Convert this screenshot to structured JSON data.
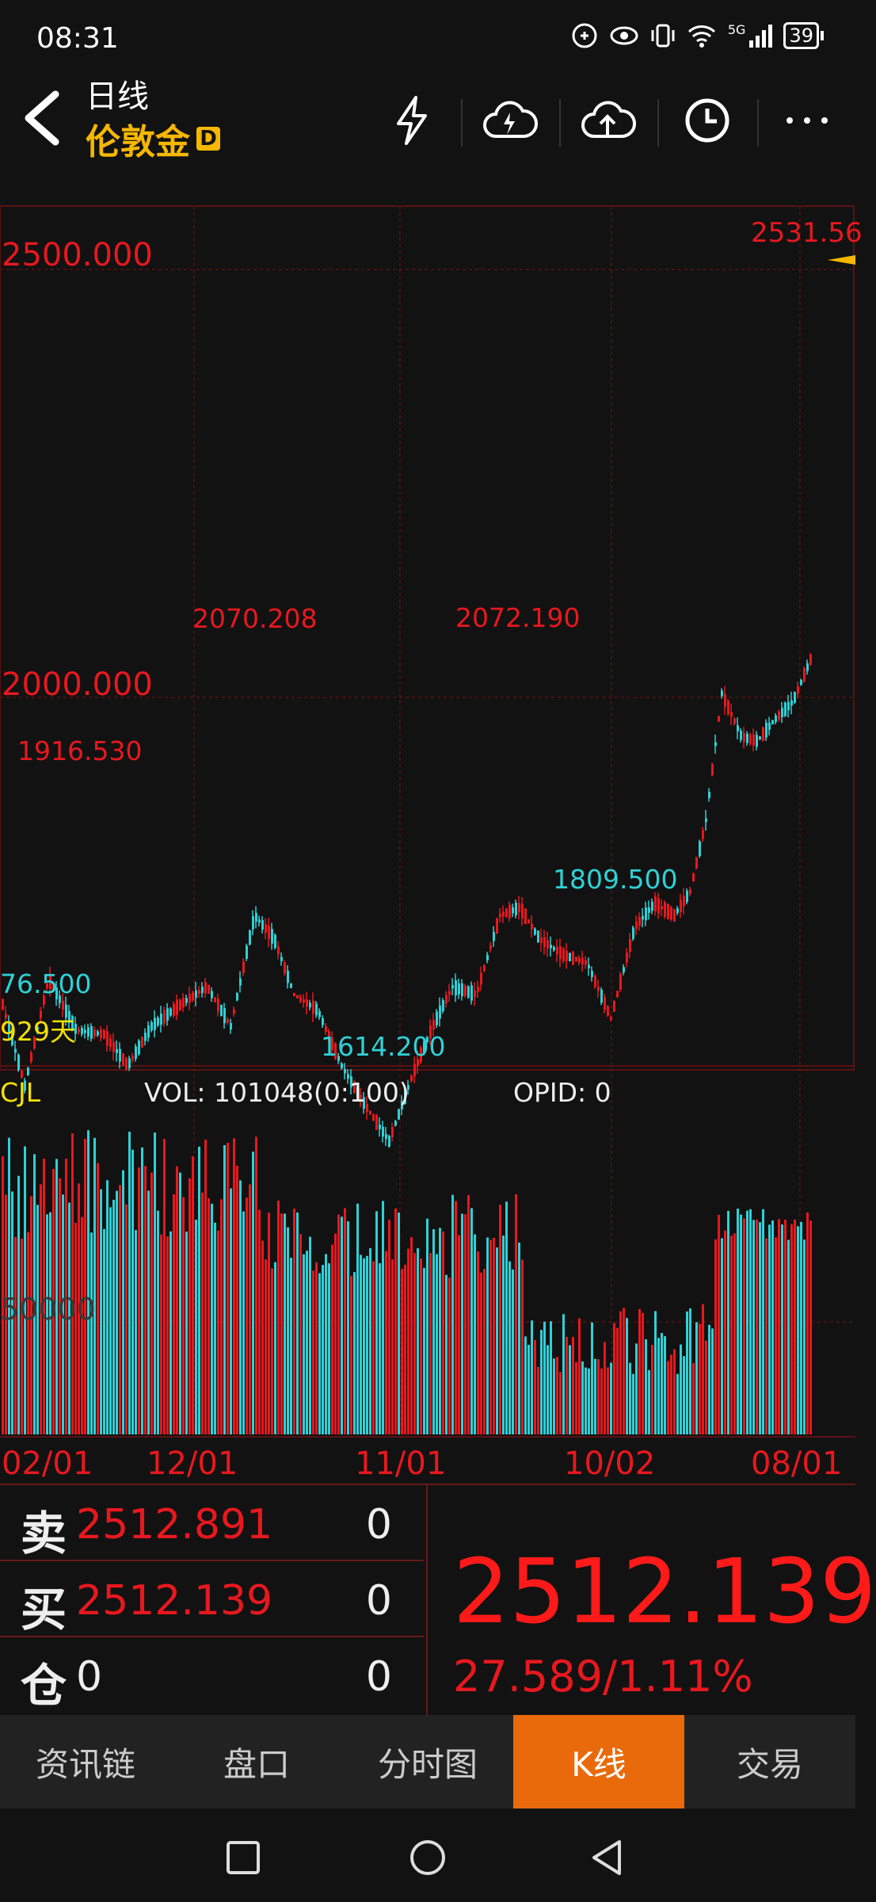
{
  "status_bar": {
    "time": "08:31",
    "battery": "39",
    "network": "5G"
  },
  "header": {
    "title": "日线",
    "instrument": "伦敦金",
    "badge": "D",
    "icons": [
      "flash-icon",
      "cloud-flash-icon",
      "cloud-upload-icon",
      "clock-icon",
      "more-icon"
    ]
  },
  "chart": {
    "price_labels": {
      "top": "2500.000",
      "mid": "2000.000"
    },
    "annotations": {
      "high": "2531.56",
      "h1": "2070.208",
      "h2": "2072.190",
      "h3": "1916.530",
      "l1": "1614.200",
      "l2": "1809.500",
      "l3": "76.500",
      "days": "929天"
    },
    "volume_header": {
      "name": "CJL",
      "vol": "VOL: 101048(0:100)",
      "opid": "OPID: 0"
    },
    "volume_axis": "50000",
    "date_labels": [
      "02/01",
      "12/01",
      "11/01",
      "10/02",
      "08/01"
    ]
  },
  "quote": {
    "sell_label": "卖",
    "sell_price": "2512.891",
    "sell_qty": "0",
    "buy_label": "买",
    "buy_price": "2512.139",
    "buy_qty": "0",
    "pos_label": "仓",
    "pos_value": "0",
    "pos_qty": "0",
    "last_price": "2512.139",
    "change": "27.589/1.11%"
  },
  "tabs": [
    "资讯链",
    "盘口",
    "分时图",
    "K线",
    "交易"
  ],
  "active_tab": "K线",
  "colors": {
    "up": "#e8181e",
    "down": "#2fd1d6",
    "accent": "#e96a0b",
    "gold": "#f5b700"
  }
}
